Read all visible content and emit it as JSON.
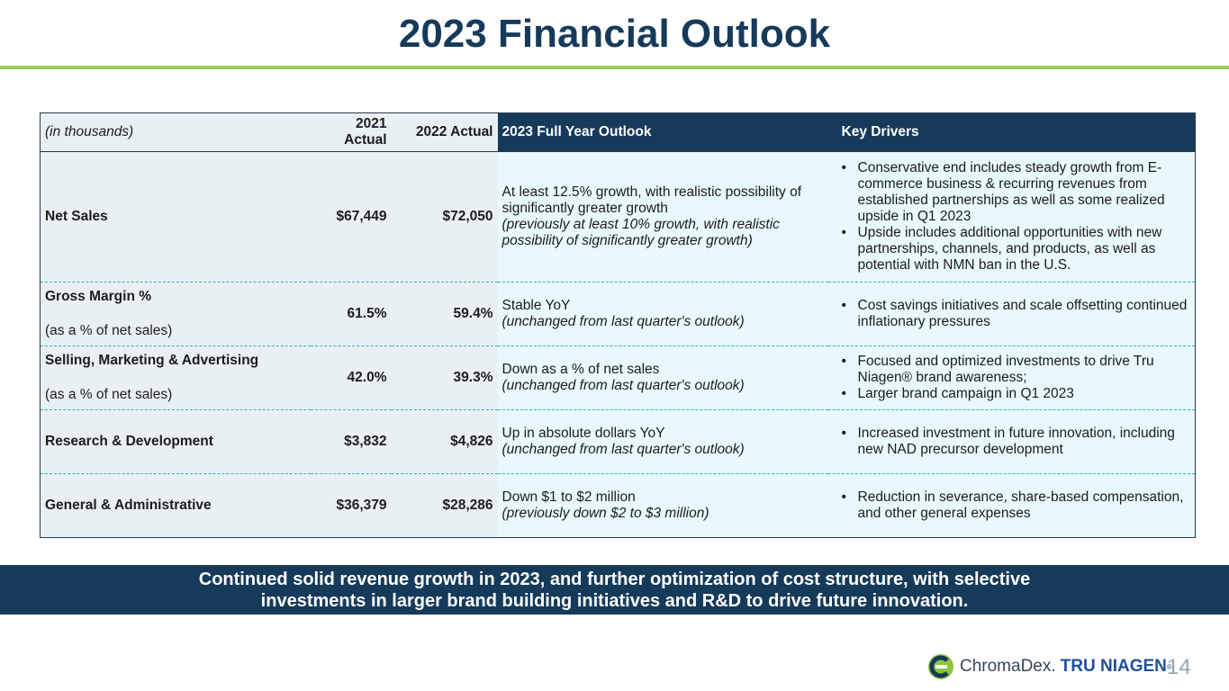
{
  "title": "2023 Financial Outlook",
  "colors": {
    "navy": "#163a5a",
    "green_rule": "#9ccf5a",
    "light_cell": "#e9f0f3",
    "aqua_cell": "#e8f8fb",
    "dashed": "#2fb3c9"
  },
  "table": {
    "headers": {
      "units": "(in thousands)",
      "actual_2021": "2021 Actual",
      "actual_2022": "2022 Actual",
      "outlook": "2023 Full Year Outlook",
      "drivers": "Key Drivers"
    },
    "rows": [
      {
        "label": "Net Sales",
        "sublabel": "",
        "v2021": "$67,449",
        "v2022": "$72,050",
        "outlook": " At least 12.5% growth, with realistic possibility of significantly greater growth",
        "outlook_note": "(previously at least 10% growth, with realistic possibility of significantly greater growth)",
        "drivers": [
          "Conservative end includes steady growth from E-commerce business & recurring revenues from established partnerships as well as some realized upside in Q1 2023",
          "Upside includes additional opportunities with new partnerships, channels, and products, as well as potential with NMN ban in the U.S."
        ]
      },
      {
        "label": "Gross Margin %",
        "sublabel": "(as a % of net sales)",
        "v2021": "61.5%",
        "v2022": "59.4%",
        "outlook": "Stable YoY",
        "outlook_note": "(unchanged from last quarter's outlook)",
        "drivers": [
          "Cost savings initiatives and scale offsetting continued inflationary pressures"
        ]
      },
      {
        "label": "Selling, Marketing & Advertising",
        "sublabel": "(as a % of net sales)",
        "v2021": "42.0%",
        "v2022": "39.3%",
        "outlook": "Down as a % of net sales",
        "outlook_note": "(unchanged from last quarter's outlook)",
        "drivers": [
          "Focused and optimized investments to drive Tru Niagen® brand awareness;",
          "Larger brand campaign in Q1 2023"
        ]
      },
      {
        "label": "Research & Development",
        "sublabel": "",
        "v2021": "$3,832",
        "v2022": "$4,826",
        "outlook": "Up in absolute dollars YoY",
        "outlook_note": "(unchanged from last quarter's outlook)",
        "drivers": [
          "Increased investment in future innovation, including new NAD precursor development"
        ]
      },
      {
        "label": "General & Administrative",
        "sublabel": "",
        "v2021": "$36,379",
        "v2022": "$28,286",
        "outlook": "Down $1 to $2 million",
        "outlook_note": "(previously down $2 to $3 million)",
        "drivers": [
          "Reduction in severance, share-based compensation, and other general expenses"
        ]
      }
    ]
  },
  "banner": {
    "line1": "Continued solid revenue growth in 2023, and further optimization of cost structure, with selective",
    "line2": "investments in larger brand building initiatives and R&D to drive future innovation."
  },
  "logo": {
    "chromadex": "ChromaDex.",
    "tru_niagen": "TRU NIAGEN",
    "tm": "®",
    "icon": "chromadex-logo-icon"
  },
  "page_number": "14"
}
